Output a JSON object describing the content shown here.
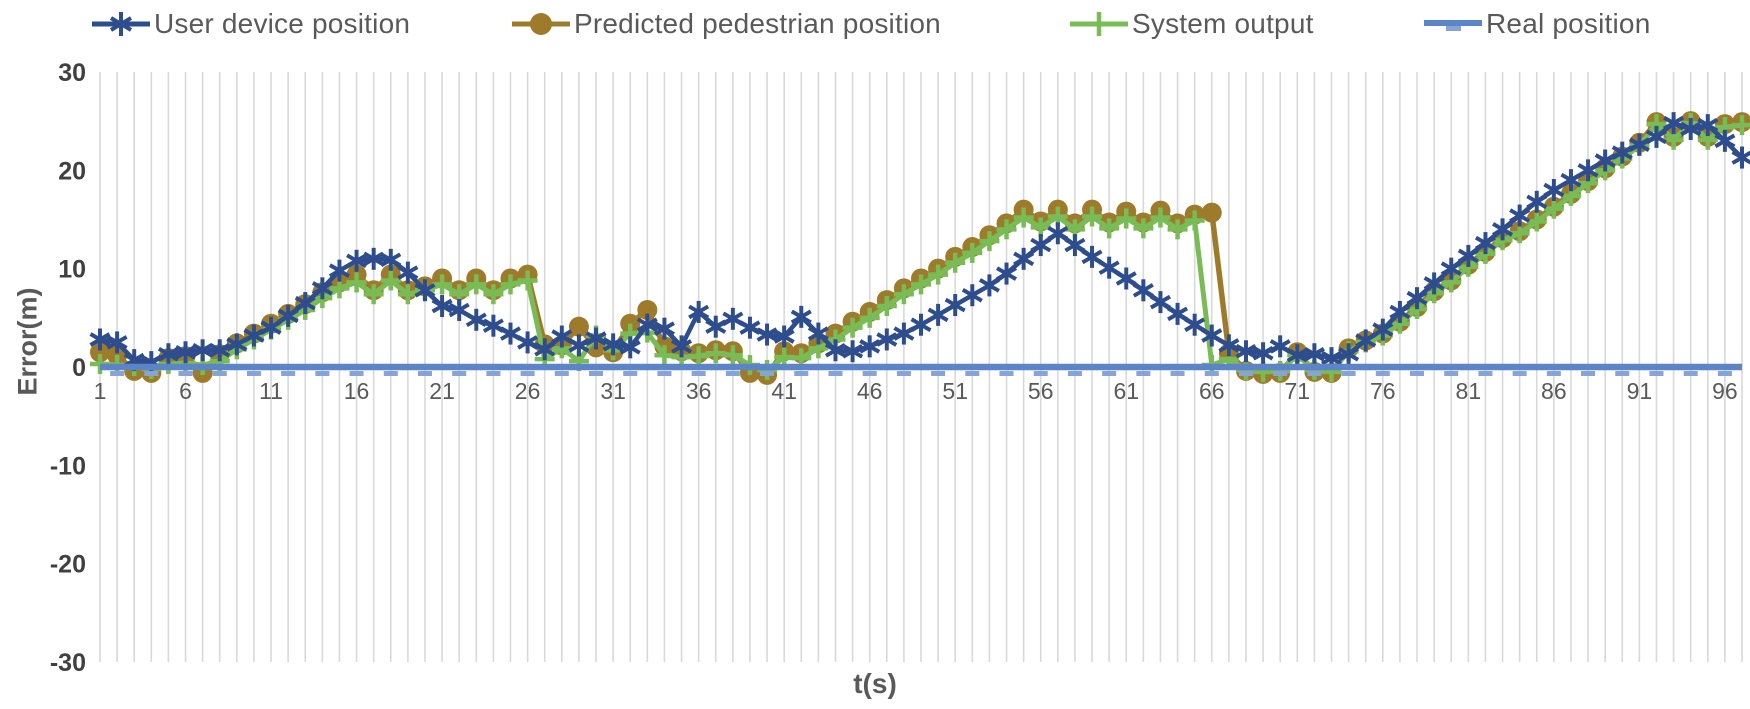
{
  "legend": {
    "items": [
      {
        "label": "User device position",
        "marker": "asterisk",
        "color": "#2E4D8E"
      },
      {
        "label": "Predicted pedestrian position",
        "marker": "circle",
        "color": "#9E7B2B"
      },
      {
        "label": "System output",
        "marker": "plus",
        "color": "#79BC55"
      },
      {
        "label": "Real position",
        "marker": "dash",
        "color": "#5C85C7"
      }
    ]
  },
  "axes": {
    "y_title": "Error(m)",
    "x_title": "t(s)"
  },
  "colors": {
    "gridline": "#D9D9D9",
    "tick_text": "#595959",
    "y_tick_text": "#404040",
    "real_dash": "#86A4D8"
  },
  "chart_data": {
    "type": "line",
    "title": "",
    "xlabel": "t(s)",
    "ylabel": "Error(m)",
    "x_start": 1,
    "n_points": 97,
    "ylim": [
      -30,
      30
    ],
    "y_ticks": [
      30,
      20,
      10,
      0,
      -10,
      -20,
      -30
    ],
    "x_tick_labels": [
      1,
      6,
      11,
      16,
      21,
      26,
      31,
      36,
      41,
      46,
      51,
      56,
      61,
      66,
      71,
      76,
      81,
      86,
      91,
      96
    ],
    "grid": "vertical-only",
    "legend_position": "top",
    "series": [
      {
        "name": "Predicted pedestrian position",
        "color": "#9E7B2B",
        "marker": "circle",
        "line_width": 5.5,
        "values": [
          1.5,
          1.2,
          -0.4,
          -0.6,
          0.9,
          1.1,
          -0.6,
          1.3,
          2.4,
          3.4,
          4.4,
          5.4,
          6.4,
          7.6,
          8.6,
          9.4,
          7.8,
          9.4,
          7.8,
          8.2,
          9.0,
          7.8,
          9.0,
          7.8,
          9.0,
          9.4,
          2.3,
          2.2,
          4.1,
          2.0,
          1.5,
          4.4,
          5.8,
          2.1,
          1.6,
          1.4,
          1.7,
          1.6,
          -0.6,
          -0.8,
          1.6,
          1.4,
          2.4,
          3.4,
          4.6,
          5.6,
          6.8,
          8.0,
          9.0,
          10.0,
          11.2,
          12.2,
          13.4,
          14.6,
          16.0,
          14.8,
          16.0,
          14.6,
          16.0,
          14.7,
          15.8,
          14.7,
          15.9,
          14.6,
          15.5,
          15.7,
          1.4,
          -0.4,
          -0.7,
          -0.6,
          1.5,
          -0.5,
          -0.6,
          1.9,
          2.7,
          3.4,
          4.6,
          6.1,
          7.7,
          8.8,
          10.4,
          11.7,
          13.1,
          13.8,
          15.0,
          16.3,
          17.6,
          18.9,
          20.2,
          21.4,
          22.8,
          24.9,
          23.4,
          25.0,
          23.4,
          24.7,
          24.9
        ]
      },
      {
        "name": "System output",
        "color": "#79BC55",
        "marker": "plus",
        "line_width": 5,
        "values": [
          0.3,
          0.2,
          0.1,
          -0.2,
          0.3,
          0.4,
          0.2,
          0.6,
          1.8,
          2.8,
          3.8,
          4.8,
          5.8,
          7.0,
          8.0,
          8.6,
          7.4,
          8.8,
          7.4,
          7.8,
          8.4,
          7.4,
          8.4,
          7.4,
          8.4,
          8.8,
          0.8,
          1.9,
          0.6,
          3.2,
          1.7,
          3.4,
          3.5,
          1.2,
          1.0,
          1.1,
          1.4,
          1.2,
          0.2,
          -0.3,
          1.0,
          0.9,
          1.9,
          2.8,
          4.0,
          5.0,
          6.2,
          7.4,
          8.4,
          9.4,
          10.6,
          11.6,
          12.8,
          14.0,
          15.2,
          14.2,
          15.3,
          14.0,
          15.3,
          14.1,
          15.1,
          14.1,
          15.2,
          14.0,
          14.9,
          0.2,
          0.8,
          -0.3,
          -0.5,
          -0.4,
          1.2,
          -0.3,
          -0.5,
          1.6,
          2.5,
          3.2,
          4.4,
          5.9,
          7.5,
          8.6,
          10.2,
          11.5,
          12.9,
          13.6,
          14.8,
          16.1,
          17.4,
          18.7,
          20.0,
          21.2,
          22.5,
          24.7,
          23.1,
          24.8,
          23.1,
          24.4,
          24.6
        ]
      },
      {
        "name": "User device position",
        "color": "#2E4D8E",
        "marker": "asterisk",
        "line_width": 4.5,
        "values": [
          2.8,
          2.5,
          0.7,
          0.5,
          1.3,
          1.5,
          1.7,
          1.7,
          2.3,
          3.2,
          4.0,
          5.2,
          6.5,
          8.0,
          9.8,
          10.8,
          11.0,
          10.9,
          9.6,
          7.8,
          6.2,
          5.8,
          4.8,
          4.2,
          3.4,
          2.5,
          1.8,
          3.1,
          2.2,
          2.9,
          2.3,
          2.0,
          4.3,
          3.9,
          2.1,
          5.6,
          4.1,
          4.9,
          4.0,
          3.3,
          3.1,
          5.1,
          3.4,
          1.7,
          1.6,
          2.1,
          2.8,
          3.4,
          4.3,
          5.3,
          6.3,
          7.3,
          8.3,
          9.5,
          11.0,
          12.4,
          13.6,
          12.4,
          11.2,
          10.1,
          9.0,
          7.8,
          6.6,
          5.4,
          4.3,
          3.2,
          2.2,
          1.6,
          1.4,
          2.1,
          1.2,
          1.3,
          0.9,
          1.3,
          2.7,
          3.8,
          5.6,
          7.0,
          8.5,
          10.0,
          11.3,
          12.6,
          14.0,
          15.4,
          16.8,
          18.0,
          19.0,
          20.0,
          21.0,
          21.8,
          22.6,
          23.4,
          24.8,
          24.2,
          24.6,
          23.0,
          21.3
        ]
      },
      {
        "name": "Real position",
        "color": "#5C85C7",
        "marker": "dash",
        "line_width": 6.5,
        "constant": 0
      }
    ]
  }
}
